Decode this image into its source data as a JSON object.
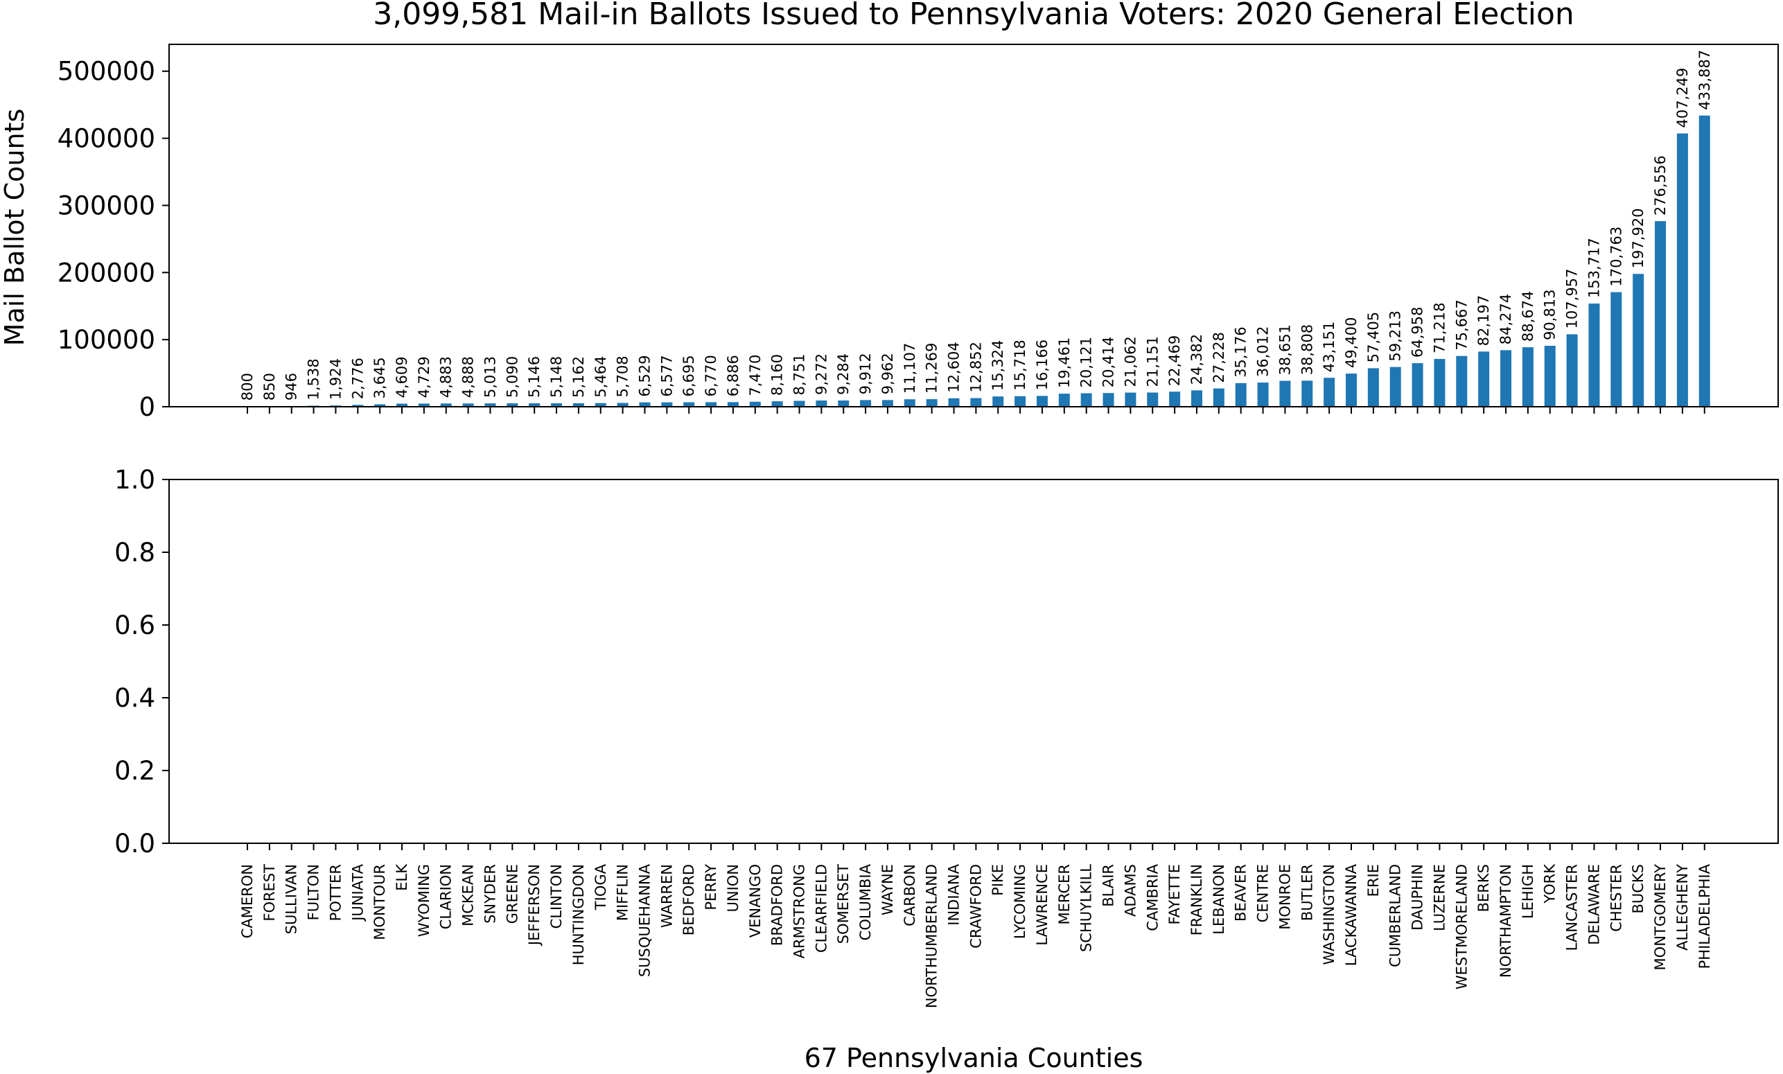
{
  "title": "3,099,581 Mail-in Ballots Issued to Pennsylvania Voters: 2020 General Election",
  "colors": {
    "bar": "#1f77b4",
    "axis": "#000000",
    "background": "#ffffff"
  },
  "chart_data": [
    {
      "type": "bar",
      "title": "3,099,581 Mail-in Ballots Issued to Pennsylvania Voters: 2020 General Election",
      "ylabel": "Mail Ballot Counts",
      "xlabel": "",
      "ylim": [
        0,
        540000
      ],
      "yticks": [
        0,
        100000,
        200000,
        300000,
        400000,
        500000
      ],
      "ytick_labels": [
        "0",
        "100000",
        "200000",
        "300000",
        "400000",
        "500000"
      ],
      "grid": false,
      "categories": [
        "CAMERON",
        "FOREST",
        "SULLIVAN",
        "FULTON",
        "POTTER",
        "JUNIATA",
        "MONTOUR",
        "ELK",
        "WYOMING",
        "CLARION",
        "MCKEAN",
        "SNYDER",
        "GREENE",
        "JEFFERSON",
        "CLINTON",
        "HUNTINGDON",
        "TIOGA",
        "MIFFLIN",
        "SUSQUEHANNA",
        "WARREN",
        "BEDFORD",
        "PERRY",
        "UNION",
        "VENANGO",
        "BRADFORD",
        "ARMSTRONG",
        "CLEARFIELD",
        "SOMERSET",
        "COLUMBIA",
        "WAYNE",
        "CARBON",
        "NORTHUMBERLAND",
        "INDIANA",
        "CRAWFORD",
        "PIKE",
        "LYCOMING",
        "LAWRENCE",
        "MERCER",
        "SCHUYLKILL",
        "BLAIR",
        "ADAMS",
        "CAMBRIA",
        "FAYETTE",
        "FRANKLIN",
        "LEBANON",
        "BEAVER",
        "CENTRE",
        "MONROE",
        "BUTLER",
        "WASHINGTON",
        "LACKAWANNA",
        "ERIE",
        "CUMBERLAND",
        "DAUPHIN",
        "LUZERNE",
        "WESTMORELAND",
        "BERKS",
        "NORTHAMPTON",
        "LEHIGH",
        "YORK",
        "LANCASTER",
        "DELAWARE",
        "CHESTER",
        "BUCKS",
        "MONTGOMERY",
        "ALLEGHENY",
        "PHILADELPHIA"
      ],
      "values": [
        800,
        850,
        946,
        1538,
        1924,
        2776,
        3645,
        4609,
        4729,
        4883,
        4888,
        5013,
        5090,
        5146,
        5148,
        5162,
        5464,
        5708,
        6529,
        6577,
        6695,
        6770,
        6886,
        7470,
        8160,
        8751,
        9272,
        9284,
        9912,
        9962,
        11107,
        11269,
        12604,
        12852,
        15324,
        15718,
        16166,
        19461,
        20121,
        20414,
        21062,
        21151,
        22469,
        24382,
        27228,
        35176,
        36012,
        38651,
        38808,
        43151,
        49400,
        57405,
        59213,
        64958,
        71218,
        75667,
        82197,
        84274,
        88674,
        90813,
        107957,
        153717,
        170763,
        197920,
        276556,
        407249,
        433887
      ],
      "data_labels": [
        "800",
        "850",
        "946",
        "1,538",
        "1,924",
        "2,776",
        "3,645",
        "4,609",
        "4,729",
        "4,883",
        "4,888",
        "5,013",
        "5,090",
        "5,146",
        "5,148",
        "5,162",
        "5,464",
        "5,708",
        "6,529",
        "6,577",
        "6,695",
        "6,770",
        "6,886",
        "7,470",
        "8,160",
        "8,751",
        "9,272",
        "9,284",
        "9,912",
        "9,962",
        "11,107",
        "11,269",
        "12,604",
        "12,852",
        "15,324",
        "15,718",
        "16,166",
        "19,461",
        "20,121",
        "20,414",
        "21,062",
        "21,151",
        "22,469",
        "24,382",
        "27,228",
        "35,176",
        "36,012",
        "38,651",
        "38,808",
        "43,151",
        "49,400",
        "57,405",
        "59,213",
        "64,958",
        "71,218",
        "75,667",
        "82,197",
        "84,274",
        "88,674",
        "90,813",
        "107,957",
        "153,717",
        "170,763",
        "197,920",
        "276,556",
        "407,249",
        "433,887"
      ]
    },
    {
      "type": "bar",
      "title": "",
      "ylabel": "",
      "xlabel": "67 Pennsylvania Counties",
      "ylim": [
        0,
        1
      ],
      "yticks": [
        0,
        0.2,
        0.4,
        0.6,
        0.8,
        1.0
      ],
      "ytick_labels": [
        "0.0",
        "0.2",
        "0.4",
        "0.6",
        "0.8",
        "1.0"
      ],
      "grid": false,
      "categories": "same as top panel (tick labels shown under this panel)",
      "values": []
    }
  ]
}
